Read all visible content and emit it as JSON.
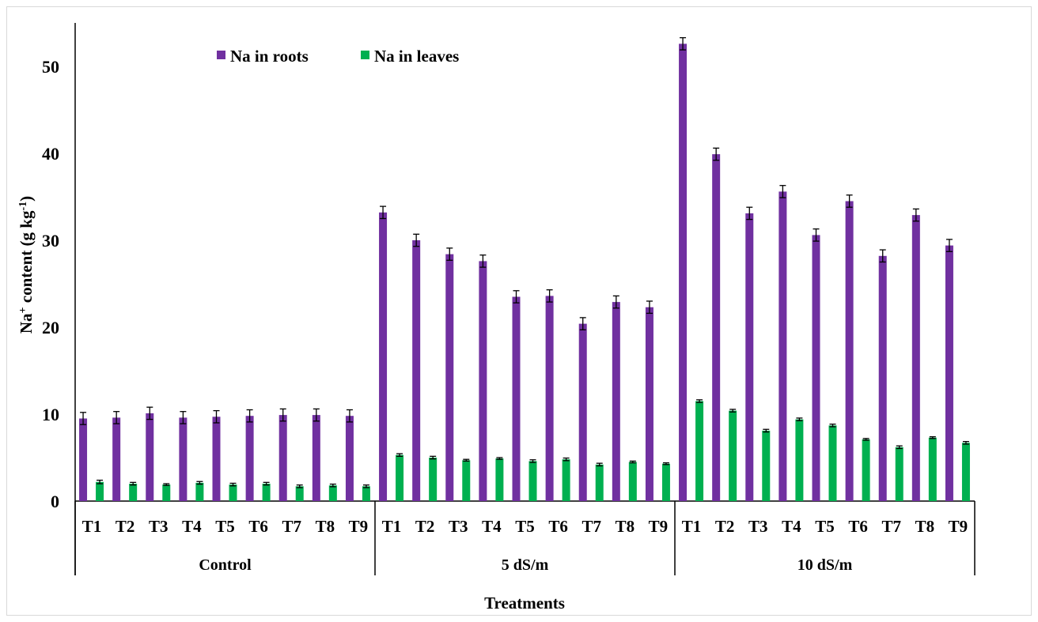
{
  "chart_data": {
    "type": "bar",
    "xlabel": "Treatments",
    "ylabel_base": "Na",
    "ylabel_sup": "+",
    "ylabel_mid": " content (g kg",
    "ylabel_sup2": "-1",
    "ylabel_end": ")",
    "ylim": [
      0,
      55
    ],
    "yticks": [
      0,
      10,
      20,
      30,
      40,
      50
    ],
    "grid": false,
    "legend_position": "top-left",
    "groups": [
      "Control",
      "5 dS/m",
      "10 dS/m"
    ],
    "categories": [
      "T1",
      "T2",
      "T3",
      "T4",
      "T5",
      "T6",
      "T7",
      "T8",
      "T9",
      "T1",
      "T2",
      "T3",
      "T4",
      "T5",
      "T6",
      "T7",
      "T8",
      "T9",
      "T1",
      "T2",
      "T3",
      "T4",
      "T5",
      "T6",
      "T7",
      "T8",
      "T9"
    ],
    "series": [
      {
        "name": "Na in roots",
        "color": "#7030a0",
        "values": [
          9.5,
          9.6,
          10.1,
          9.6,
          9.7,
          9.8,
          9.9,
          9.9,
          9.8,
          33.2,
          30.0,
          28.4,
          27.6,
          23.5,
          23.6,
          20.4,
          22.9,
          22.3,
          52.6,
          39.9,
          33.1,
          35.6,
          30.6,
          34.5,
          28.2,
          32.9,
          29.4
        ],
        "errors": [
          0.7,
          0.7,
          0.7,
          0.7,
          0.7,
          0.7,
          0.7,
          0.7,
          0.7,
          0.7,
          0.7,
          0.7,
          0.7,
          0.7,
          0.7,
          0.7,
          0.7,
          0.7,
          0.7,
          0.7,
          0.7,
          0.7,
          0.7,
          0.7,
          0.7,
          0.7,
          0.7
        ]
      },
      {
        "name": "Na in leaves",
        "color": "#00b050",
        "values": [
          2.2,
          2.0,
          1.9,
          2.1,
          1.9,
          2.0,
          1.7,
          1.8,
          1.7,
          5.3,
          5.0,
          4.7,
          4.9,
          4.6,
          4.8,
          4.2,
          4.5,
          4.3,
          11.5,
          10.4,
          8.1,
          9.4,
          8.7,
          7.1,
          6.2,
          7.3,
          6.7
        ],
        "errors": [
          0.2,
          0.15,
          0.1,
          0.15,
          0.15,
          0.15,
          0.15,
          0.15,
          0.15,
          0.15,
          0.15,
          0.1,
          0.1,
          0.15,
          0.15,
          0.15,
          0.1,
          0.1,
          0.15,
          0.15,
          0.15,
          0.15,
          0.15,
          0.1,
          0.15,
          0.1,
          0.15
        ]
      }
    ]
  }
}
